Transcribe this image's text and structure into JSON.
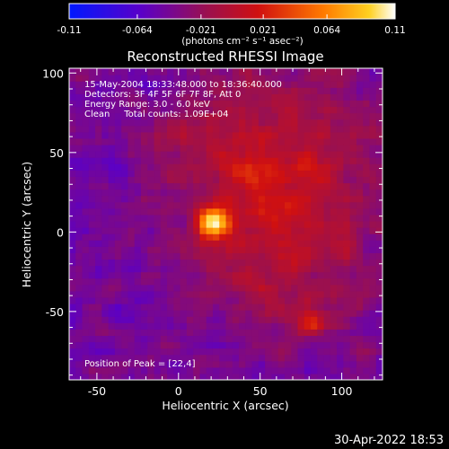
{
  "chart_data": {
    "type": "heatmap",
    "title": "Reconstructed RHESSI Image",
    "xlabel": "Heliocentric X (arcsec)",
    "ylabel": "Heliocentric Y (arcsec)",
    "xlim": [
      -67,
      125
    ],
    "ylim": [
      -93,
      103
    ],
    "x_ticks": [
      -50,
      0,
      50,
      100
    ],
    "y_ticks": [
      -50,
      0,
      50,
      100
    ],
    "colorbar": {
      "colormap": "hot-metal (blue-purple-red-orange-white)",
      "min": -0.11,
      "max": 0.11,
      "tick_values": [
        -0.11,
        -0.064,
        -0.021,
        0.021,
        0.064,
        0.11
      ],
      "tick_labels": [
        "-0.11",
        "-0.064",
        "-0.021",
        "0.021",
        "0.064",
        "0.11"
      ],
      "units_label": "(photons cm⁻² s⁻¹ asec⁻²)"
    },
    "info_lines": [
      "15-May-2004 18:33:48.000 to 18:36:40.000",
      "Detectors: 3F 4F 5F 6F 7F 8F, Att 0",
      "Energy Range: 3.0 - 6.0 keV",
      "Clean     Total counts: 1.09E+04"
    ],
    "peak_label": "Position of Peak = [22,4]",
    "peak_position": [
      22,
      4
    ],
    "sources": [
      {
        "x": 20,
        "y": 6,
        "sigma": 7,
        "amplitude": 0.11
      },
      {
        "x": 81,
        "y": -57,
        "sigma": 6,
        "amplitude": 0.07
      }
    ]
  },
  "footer_timestamp": "30-Apr-2022 18:53"
}
